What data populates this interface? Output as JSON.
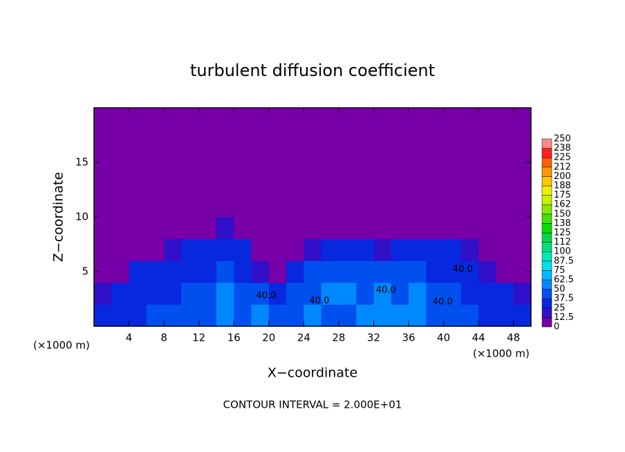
{
  "chart_data": {
    "type": "heatmap",
    "title": "turbulent diffusion coefficient",
    "x_label": "X−coordinate",
    "y_label": "Z−coordinate",
    "x_unit_left": "(×1000 m)",
    "x_unit_right": "(×1000 m)",
    "footer": "CONTOUR INTERVAL = 2.000E+01",
    "xlim": [
      0,
      50
    ],
    "ylim": [
      0,
      20
    ],
    "xticks": [
      4,
      8,
      12,
      16,
      20,
      24,
      28,
      32,
      36,
      40,
      44,
      48
    ],
    "yticks": [
      5,
      10,
      15
    ],
    "field": {
      "x_bins": [
        0,
        2,
        4,
        6,
        8,
        10,
        12,
        14,
        16,
        18,
        20,
        22,
        24,
        26,
        28,
        30,
        32,
        34,
        36,
        38,
        40,
        42,
        44,
        46,
        48,
        50
      ],
      "z_bins": [
        0,
        2,
        4,
        6,
        8,
        10
      ],
      "values": [
        [
          30,
          35,
          35,
          40,
          40,
          45,
          45,
          60,
          45,
          50,
          45,
          45,
          50,
          45,
          45,
          50,
          55,
          55,
          60,
          45,
          40,
          40,
          35,
          35,
          30
        ],
        [
          15,
          25,
          30,
          30,
          35,
          40,
          40,
          55,
          45,
          45,
          35,
          45,
          45,
          50,
          50,
          45,
          50,
          45,
          55,
          40,
          40,
          35,
          30,
          25,
          20
        ],
        [
          5,
          10,
          25,
          30,
          30,
          30,
          35,
          45,
          35,
          15,
          5,
          30,
          40,
          45,
          40,
          40,
          40,
          40,
          45,
          35,
          35,
          30,
          15,
          10,
          5
        ],
        [
          0,
          0,
          5,
          10,
          15,
          25,
          25,
          35,
          30,
          0,
          0,
          5,
          20,
          25,
          30,
          25,
          20,
          30,
          30,
          25,
          25,
          20,
          0,
          0,
          0
        ],
        [
          0,
          0,
          0,
          0,
          0,
          0,
          5,
          20,
          5,
          0,
          0,
          0,
          0,
          0,
          0,
          0,
          0,
          5,
          5,
          0,
          0,
          0,
          0,
          0,
          0
        ]
      ]
    },
    "contour_labels": [
      {
        "text": "40.0",
        "x": 25.8,
        "y": 2.3
      },
      {
        "text": "40.0",
        "x": 19.7,
        "y": 2.8
      },
      {
        "text": "40.0",
        "x": 33.4,
        "y": 3.3
      },
      {
        "text": "40.0",
        "x": 39.9,
        "y": 2.2
      },
      {
        "text": "40.0",
        "x": 42.2,
        "y": 5.2
      }
    ],
    "colorbar": {
      "ticks": [
        0,
        12.5,
        25,
        37.5,
        50,
        62.5,
        75,
        87.5,
        100,
        {
          "value": 112.5,
          "label": "112"
        },
        125,
        {
          "value": 137.5,
          "label": "138"
        },
        150,
        {
          "value": 162.5,
          "label": "162"
        },
        175,
        {
          "value": 187.5,
          "label": "188"
        },
        200,
        {
          "value": 212.5,
          "label": "212"
        },
        225,
        {
          "value": 237.5,
          "label": "238"
        },
        250
      ],
      "colors": [
        "#7800a8",
        "#3010c8",
        "#0828e0",
        "#0050f0",
        "#0088ff",
        "#00b8ff",
        "#00e0f0",
        "#00e8b8",
        "#00e080",
        "#00d848",
        "#00e000",
        "#40e000",
        "#88e800",
        "#c8f000",
        "#f0f000",
        "#ffc800",
        "#ff9800",
        "#ff6000",
        "#ff2020",
        "#ff8888"
      ]
    }
  }
}
